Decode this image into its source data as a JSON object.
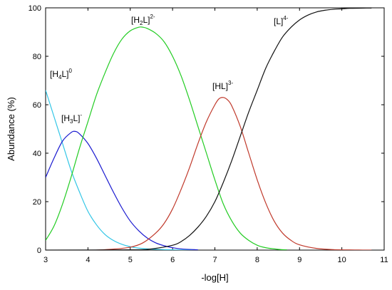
{
  "chart_data": {
    "type": "line",
    "title": "",
    "xlabel": "-log[H]",
    "ylabel": "Abundance (%)",
    "xlim": [
      3,
      11
    ],
    "ylim": [
      0,
      100
    ],
    "xticks": [
      "3",
      "4",
      "5",
      "6",
      "7",
      "8",
      "9",
      "10",
      "11"
    ],
    "yticks": [
      "0",
      "20",
      "40",
      "60",
      "80",
      "100"
    ],
    "grid": false,
    "legend": "none",
    "series": [
      {
        "label_main": "[H",
        "label_sub": "4",
        "label_tail": "L]",
        "label_sup": "0",
        "color": "#33c6e6",
        "x": [
          3.0,
          3.2,
          3.4,
          3.6,
          3.8,
          4.0,
          4.2,
          4.4,
          4.6,
          4.8,
          5.0,
          5.2,
          5.5,
          6.0,
          6.6
        ],
        "y": [
          66,
          55,
          44,
          33,
          24,
          16,
          10.5,
          6.5,
          4.0,
          2.4,
          1.4,
          0.8,
          0.4,
          0.1,
          0.0
        ]
      },
      {
        "label_main": "[H",
        "label_sub": "3",
        "label_tail": "L]",
        "label_sup": "-",
        "color": "#1a1ad0",
        "x": [
          3.0,
          3.2,
          3.4,
          3.6,
          3.7,
          3.8,
          4.0,
          4.2,
          4.4,
          4.6,
          4.8,
          5.0,
          5.2,
          5.4,
          5.6,
          5.8,
          6.0,
          6.2,
          6.6
        ],
        "y": [
          30,
          38,
          45,
          48.5,
          49,
          48,
          44,
          38,
          31,
          24,
          17.5,
          12,
          8,
          5,
          3,
          1.8,
          1.0,
          0.5,
          0.1
        ]
      },
      {
        "label_main": "[H",
        "label_sub": "2",
        "label_tail": "L]",
        "label_sup": "2-",
        "color": "#22cc22",
        "x": [
          3.0,
          3.2,
          3.4,
          3.6,
          3.8,
          4.0,
          4.2,
          4.4,
          4.6,
          4.8,
          5.0,
          5.2,
          5.3,
          5.4,
          5.6,
          5.8,
          6.0,
          6.2,
          6.4,
          6.6,
          6.8,
          7.0,
          7.2,
          7.4,
          7.6,
          7.8,
          8.0,
          8.2,
          8.5,
          8.7
        ],
        "y": [
          4,
          10,
          19,
          30,
          42,
          53,
          64,
          73,
          81,
          87,
          90.5,
          92,
          92,
          91.5,
          89.5,
          86,
          80,
          72,
          62,
          51,
          40,
          29,
          19,
          12,
          7,
          4,
          2,
          1,
          0.3,
          0.1
        ]
      },
      {
        "label_main": "[HL]",
        "label_sub": "",
        "label_tail": "",
        "label_sup": "3-",
        "color": "#c0392b",
        "x": [
          4.2,
          4.6,
          5.0,
          5.3,
          5.6,
          5.8,
          6.0,
          6.2,
          6.4,
          6.6,
          6.8,
          7.0,
          7.1,
          7.2,
          7.3,
          7.4,
          7.6,
          7.8,
          8.0,
          8.2,
          8.4,
          8.6,
          8.8,
          9.0,
          9.4,
          9.8,
          10.3,
          10.7
        ],
        "y": [
          0,
          0.4,
          1.2,
          3,
          7,
          11,
          17,
          25,
          34,
          44,
          53,
          60,
          62.5,
          63,
          62,
          59.5,
          51,
          40,
          29,
          19.5,
          12,
          7,
          4,
          2.2,
          0.7,
          0.2,
          0.05,
          0
        ]
      },
      {
        "label_main": "[L]",
        "label_sub": "",
        "label_tail": "",
        "label_sup": "4-",
        "color": "#111111",
        "x": [
          3.0,
          5.0,
          5.5,
          6.0,
          6.2,
          6.4,
          6.6,
          6.8,
          7.0,
          7.2,
          7.4,
          7.6,
          7.8,
          8.0,
          8.2,
          8.4,
          8.6,
          8.8,
          9.0,
          9.2,
          9.4,
          9.6,
          9.8,
          10.0,
          10.2,
          10.5,
          10.7
        ],
        "y": [
          0,
          0.1,
          0.5,
          2,
          3.5,
          6,
          9.5,
          14,
          20,
          28,
          37,
          47,
          57,
          66,
          75,
          82,
          88,
          92,
          95,
          97,
          98.3,
          99,
          99.4,
          99.6,
          99.8,
          99.9,
          99.9
        ]
      }
    ]
  }
}
